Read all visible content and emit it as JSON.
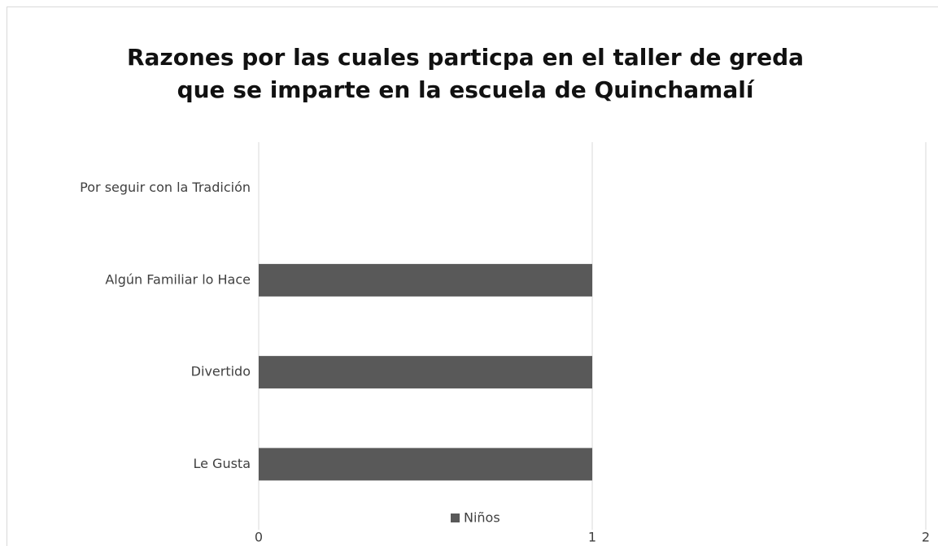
{
  "chart_data": {
    "type": "bar",
    "orientation": "horizontal",
    "title": [
      "Razones por las cuales particpa en el taller de greda",
      "que se imparte en la escuela de Quinchamalí"
    ],
    "categories": [
      "Le Gusta",
      "Divertido",
      "Algún Familiar lo Hace",
      "Por seguir con la Tradición"
    ],
    "series": [
      {
        "name": "Niños",
        "color": "#595959",
        "values": [
          1,
          1,
          1,
          0
        ]
      }
    ],
    "xlim": [
      0,
      2
    ],
    "xticks": [
      0,
      1,
      2
    ],
    "grid": true,
    "legend": "bottom"
  }
}
